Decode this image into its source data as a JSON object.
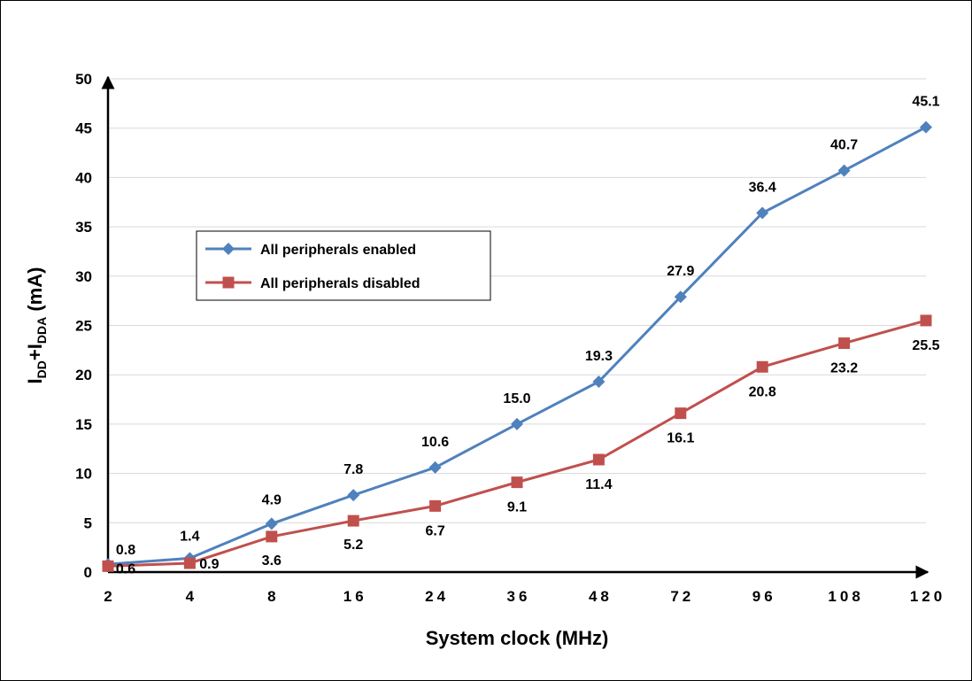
{
  "chart_data": {
    "type": "line",
    "xlabel": "System clock (MHz)",
    "ylabel": {
      "base": "I",
      "sub1": "DD",
      "plus": "+I",
      "sub2": "DDA",
      "unit": " (mA)"
    },
    "categories": [
      "2",
      "4",
      "8",
      "16",
      "24",
      "36",
      "48",
      "72",
      "96",
      "108",
      "120"
    ],
    "ylim": [
      0,
      50
    ],
    "yticks": [
      0,
      5,
      10,
      15,
      20,
      25,
      30,
      35,
      40,
      45,
      50
    ],
    "grid": true,
    "legend_position": "left",
    "series": [
      {
        "name": "All peripherals enabled",
        "color": "#4F81BD",
        "marker": "diamond",
        "values": [
          0.8,
          1.4,
          4.9,
          7.8,
          10.6,
          15.0,
          19.3,
          27.9,
          36.4,
          40.7,
          45.1
        ],
        "labels": [
          "0.8",
          "1.4",
          "4.9",
          "7.8",
          "10.6",
          "15.0",
          "19.3",
          "27.9",
          "36.4",
          "40.7",
          "45.1"
        ]
      },
      {
        "name": "All peripherals disabled",
        "color": "#C0504D",
        "marker": "square",
        "values": [
          0.6,
          0.9,
          3.6,
          5.2,
          6.7,
          9.1,
          11.4,
          16.1,
          20.8,
          23.2,
          25.5
        ],
        "labels": [
          "0.6",
          "0.9",
          "3.6",
          "5.2",
          "6.7",
          "9.1",
          "11.4",
          "16.1",
          "20.8",
          "23.2",
          "25.5"
        ]
      }
    ]
  }
}
